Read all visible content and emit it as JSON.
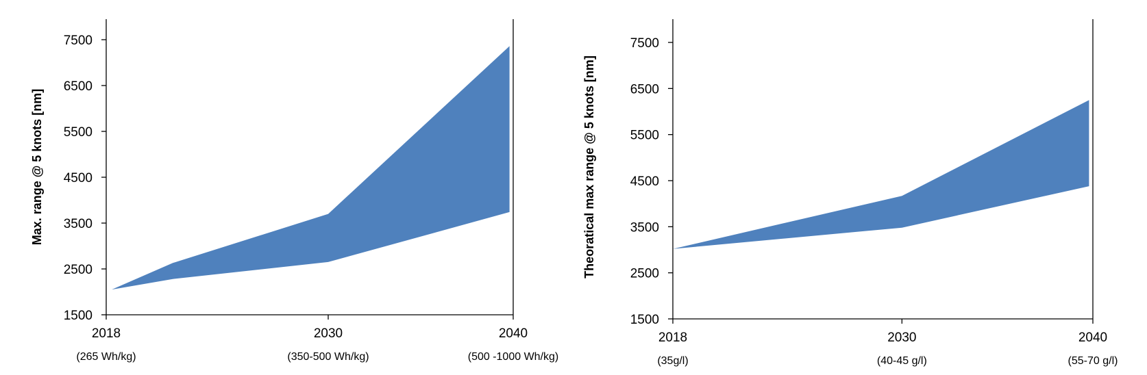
{
  "chart_data": [
    {
      "type": "area",
      "title": "",
      "xlabel": "",
      "ylabel": "Max. range @ 5 knots [nm]",
      "x_range": [
        2018,
        2040
      ],
      "ylim": [
        1500,
        8000
      ],
      "y_ticks": [
        "1500",
        "2500",
        "3500",
        "4500",
        "5500",
        "6500",
        "7500"
      ],
      "x_ticks": [
        {
          "value": 2018,
          "label": "2018",
          "sublabel": "(265 Wh/kg)"
        },
        {
          "value": 2030,
          "label": "2030",
          "sublabel": "(350-500 Wh/kg)"
        },
        {
          "value": 2040,
          "label": "2040",
          "sublabel": "(500 -1000 Wh/kg)"
        }
      ],
      "band_upper": [
        [
          2018.3,
          2050
        ],
        [
          2021.6,
          2630
        ],
        [
          2030,
          3700
        ],
        [
          2039.8,
          7360
        ]
      ],
      "band_lower": [
        [
          2018.3,
          2050
        ],
        [
          2021.6,
          2280
        ],
        [
          2030,
          2650
        ],
        [
          2039.8,
          3740
        ]
      ],
      "fill_color": "#4f81bd",
      "grid": false
    },
    {
      "type": "area",
      "title": "",
      "xlabel": "",
      "ylabel": "Theoratical max range @ 5 knots [nm]",
      "x_range": [
        2018,
        2040
      ],
      "ylim": [
        1500,
        8000
      ],
      "y_ticks": [
        "1500",
        "2500",
        "3500",
        "4500",
        "5500",
        "6500",
        "7500"
      ],
      "x_ticks": [
        {
          "value": 2018,
          "label": "2018",
          "sublabel": "(35g/l)"
        },
        {
          "value": 2030,
          "label": "2030",
          "sublabel": "(40-45 g/l)"
        },
        {
          "value": 2040,
          "label": "2040",
          "sublabel": "(55-70 g/l)"
        }
      ],
      "band_upper": [
        [
          2018,
          3020
        ],
        [
          2030,
          4170
        ],
        [
          2039.8,
          6250
        ]
      ],
      "band_lower": [
        [
          2018,
          3020
        ],
        [
          2030,
          3480
        ],
        [
          2039.8,
          4380
        ]
      ],
      "fill_color": "#4f81bd",
      "grid": false
    }
  ]
}
